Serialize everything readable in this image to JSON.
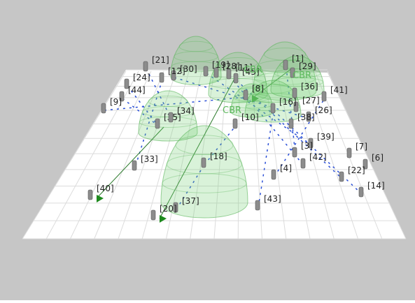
{
  "nodes": [
    "[21]",
    "[30]",
    "[12]",
    "[19]",
    "[28]",
    "[11]",
    "[45]",
    "[1]",
    "[29]",
    "[24]",
    "[44]",
    "[9]",
    "[41]",
    "[36]",
    "[27]",
    "[26]",
    "[38]",
    "[8]",
    "[16]",
    "[35]",
    "[34]",
    "[10]",
    "[39]",
    "[3]",
    "[7]",
    "[6]",
    "[42]",
    "[4]",
    "[22]",
    "[14]",
    "[33]",
    "[18]",
    "[40]",
    "[43]",
    "[37]",
    "[20]"
  ],
  "flow_labels": [
    "CBR",
    "CBR",
    "CBR"
  ]
}
